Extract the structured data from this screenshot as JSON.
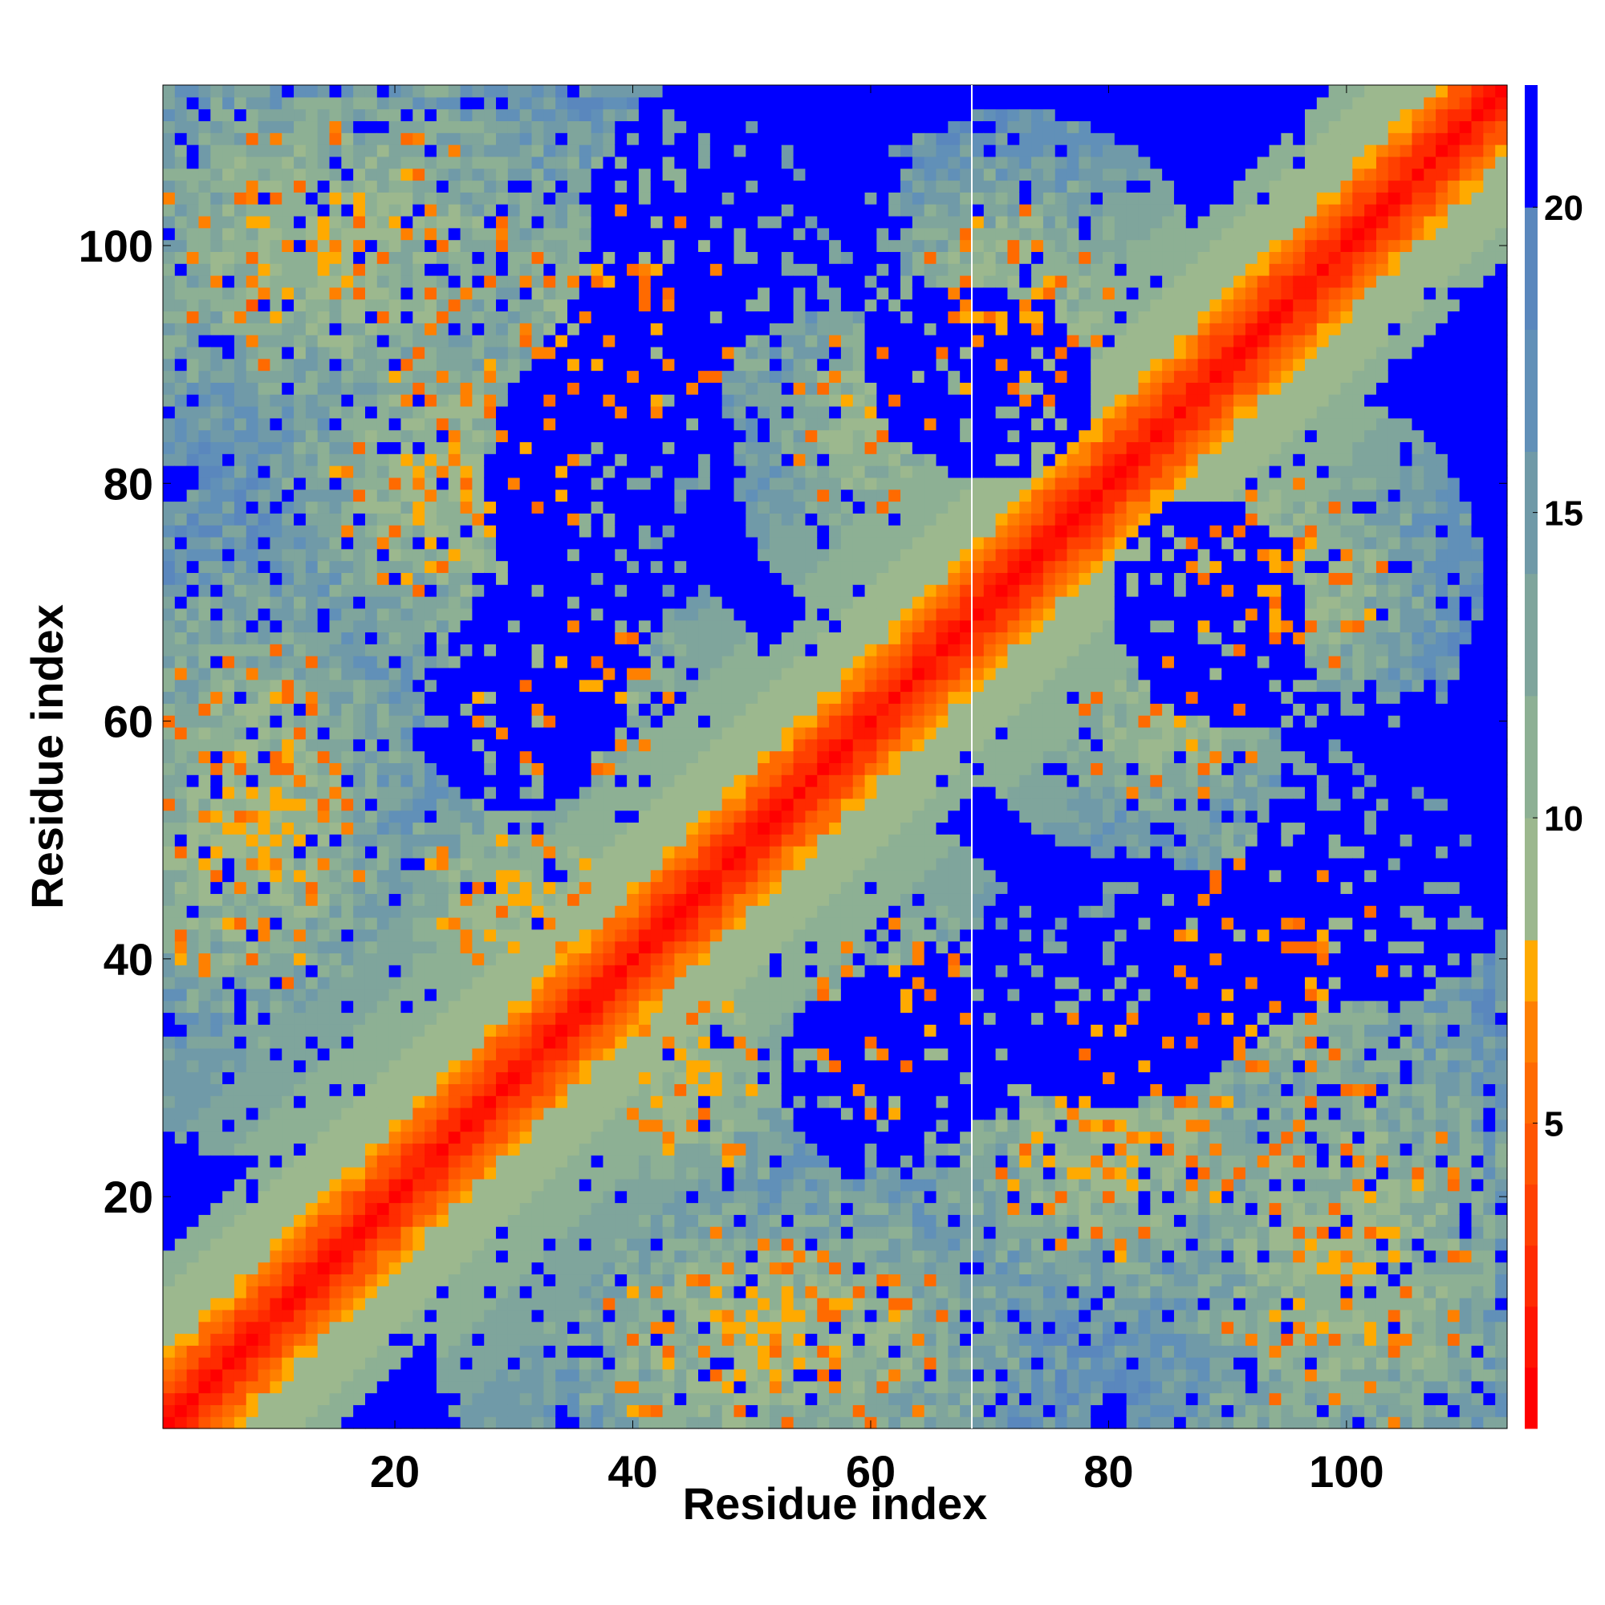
{
  "chart_data": {
    "type": "heatmap",
    "title": "",
    "xlabel": "Residue index",
    "ylabel": "Residue index",
    "xlim": [
      0.5,
      113.5
    ],
    "ylim": [
      0.5,
      113.5
    ],
    "n_residues": 113,
    "x_ticks": [
      20,
      40,
      60,
      80,
      100
    ],
    "y_ticks": [
      20,
      40,
      60,
      80,
      100
    ],
    "colorbar": {
      "range": [
        0,
        22
      ],
      "ticks": [
        5,
        10,
        15,
        20
      ],
      "levels": [
        {
          "max": 1,
          "color": "#ff0000"
        },
        {
          "max": 2,
          "color": "#ff1500"
        },
        {
          "max": 3,
          "color": "#ff2b00"
        },
        {
          "max": 4,
          "color": "#ff4000"
        },
        {
          "max": 5,
          "color": "#ff5500"
        },
        {
          "max": 6,
          "color": "#ff6a00"
        },
        {
          "max": 7,
          "color": "#ff8000"
        },
        {
          "max": 8,
          "color": "#ffaa00"
        },
        {
          "max": 10,
          "color": "#9cb88e"
        },
        {
          "max": 12,
          "color": "#8db094"
        },
        {
          "max": 14,
          "color": "#7fa59c"
        },
        {
          "max": 16,
          "color": "#709aa8"
        },
        {
          "max": 18,
          "color": "#6190b8"
        },
        {
          "max": 20,
          "color": "#5a87bd"
        },
        {
          "max": 22,
          "color": "#0000ff"
        }
      ]
    },
    "values_description": "Symmetric residue-residue distance map (Å). Diagonal ≈ 0–4; strong anti-diagonal contacts between residues ~1–35 and ~95–113; distant pairs exceed 20 (blue). A thin white gap at residue ~68."
  }
}
